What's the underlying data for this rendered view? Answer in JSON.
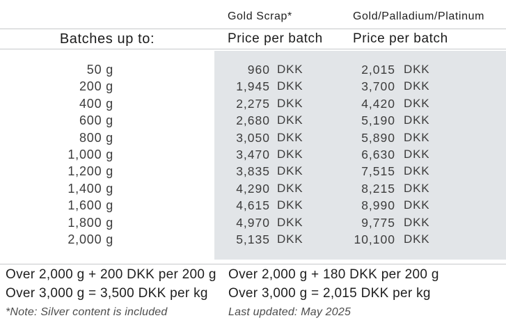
{
  "table": {
    "currency": "DKK",
    "col_headers": {
      "gold_scrap": "Gold Scrap*",
      "gold_pd_pt": "Gold/Palladium/Platinum"
    },
    "batches_label": "Batches up to:",
    "price_per_batch_gold_scrap": "Price per batch",
    "price_per_batch_gold_pd_pt": "Price per batch",
    "rows": [
      {
        "batch": "50 g",
        "gold_scrap": "960",
        "gold_pd_pt": "2,015"
      },
      {
        "batch": "200 g",
        "gold_scrap": "1,945",
        "gold_pd_pt": "3,700"
      },
      {
        "batch": "400 g",
        "gold_scrap": "2,275",
        "gold_pd_pt": "4,420"
      },
      {
        "batch": "600 g",
        "gold_scrap": "2,680",
        "gold_pd_pt": "5,190"
      },
      {
        "batch": "800 g",
        "gold_scrap": "3,050",
        "gold_pd_pt": "5,890"
      },
      {
        "batch": "1,000 g",
        "gold_scrap": "3,470",
        "gold_pd_pt": "6,630"
      },
      {
        "batch": "1,200 g",
        "gold_scrap": "3,835",
        "gold_pd_pt": "7,515"
      },
      {
        "batch": "1,400 g",
        "gold_scrap": "4,290",
        "gold_pd_pt": "8,215"
      },
      {
        "batch": "1,600 g",
        "gold_scrap": "4,615",
        "gold_pd_pt": "8,990"
      },
      {
        "batch": "1,800 g",
        "gold_scrap": "4,970",
        "gold_pd_pt": "9,775"
      },
      {
        "batch": "2,000 g",
        "gold_scrap": "5,135",
        "gold_pd_pt": "10,100"
      }
    ]
  },
  "footer": {
    "gold_scrap_over_2000": "Over 2,000 g + 200 DKK per 200 g",
    "gold_scrap_over_3000": "Over 3,000 g = 3,500 DKK per kg",
    "gold_scrap_note": "*Note: Silver content is included",
    "gold_pd_pt_over_2000": "Over 2,000 g + 180 DKK per 200 g",
    "gold_pd_pt_over_3000": "Over 3,000 g = 2,015 DKK per kg",
    "last_updated": "Last updated: May 2025"
  },
  "colors": {
    "price_band_background": "#e2e5e8",
    "separator_line": "#c6c8ca",
    "heading_text": "#1f1f1f",
    "body_text": "#3c3c3c",
    "note_text": "#4c4c4c"
  }
}
